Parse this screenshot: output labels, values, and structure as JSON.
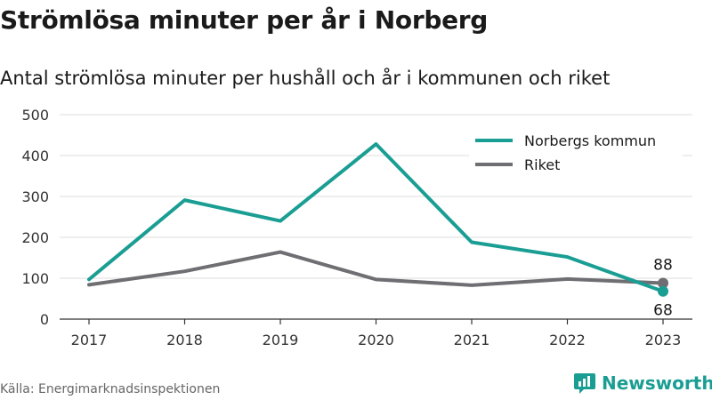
{
  "title": "Strömlösa minuter per år i Norberg",
  "subtitle": "Antal strömlösa minuter per hushåll och år i kommunen och riket",
  "source": "Källa: Energimarknadsinspektionen",
  "brand": {
    "name": "Newsworthy",
    "icon": "newsworthy-logo-icon",
    "color": "#1a9e93"
  },
  "chart_data": {
    "type": "line",
    "categories": [
      "2017",
      "2018",
      "2019",
      "2020",
      "2021",
      "2022",
      "2023"
    ],
    "ylim": [
      0,
      500
    ],
    "yticks": [
      0,
      100,
      200,
      300,
      400,
      500
    ],
    "grid": true,
    "legend_position": "top-right",
    "series": [
      {
        "name": "Norbergs kommun",
        "color": "#1a9e93",
        "values": [
          97,
          291,
          240,
          428,
          188,
          152,
          68
        ]
      },
      {
        "name": "Riket",
        "color": "#6e6e73",
        "values": [
          84,
          117,
          164,
          97,
          83,
          98,
          88
        ]
      }
    ],
    "end_labels": [
      "68",
      "88"
    ]
  }
}
